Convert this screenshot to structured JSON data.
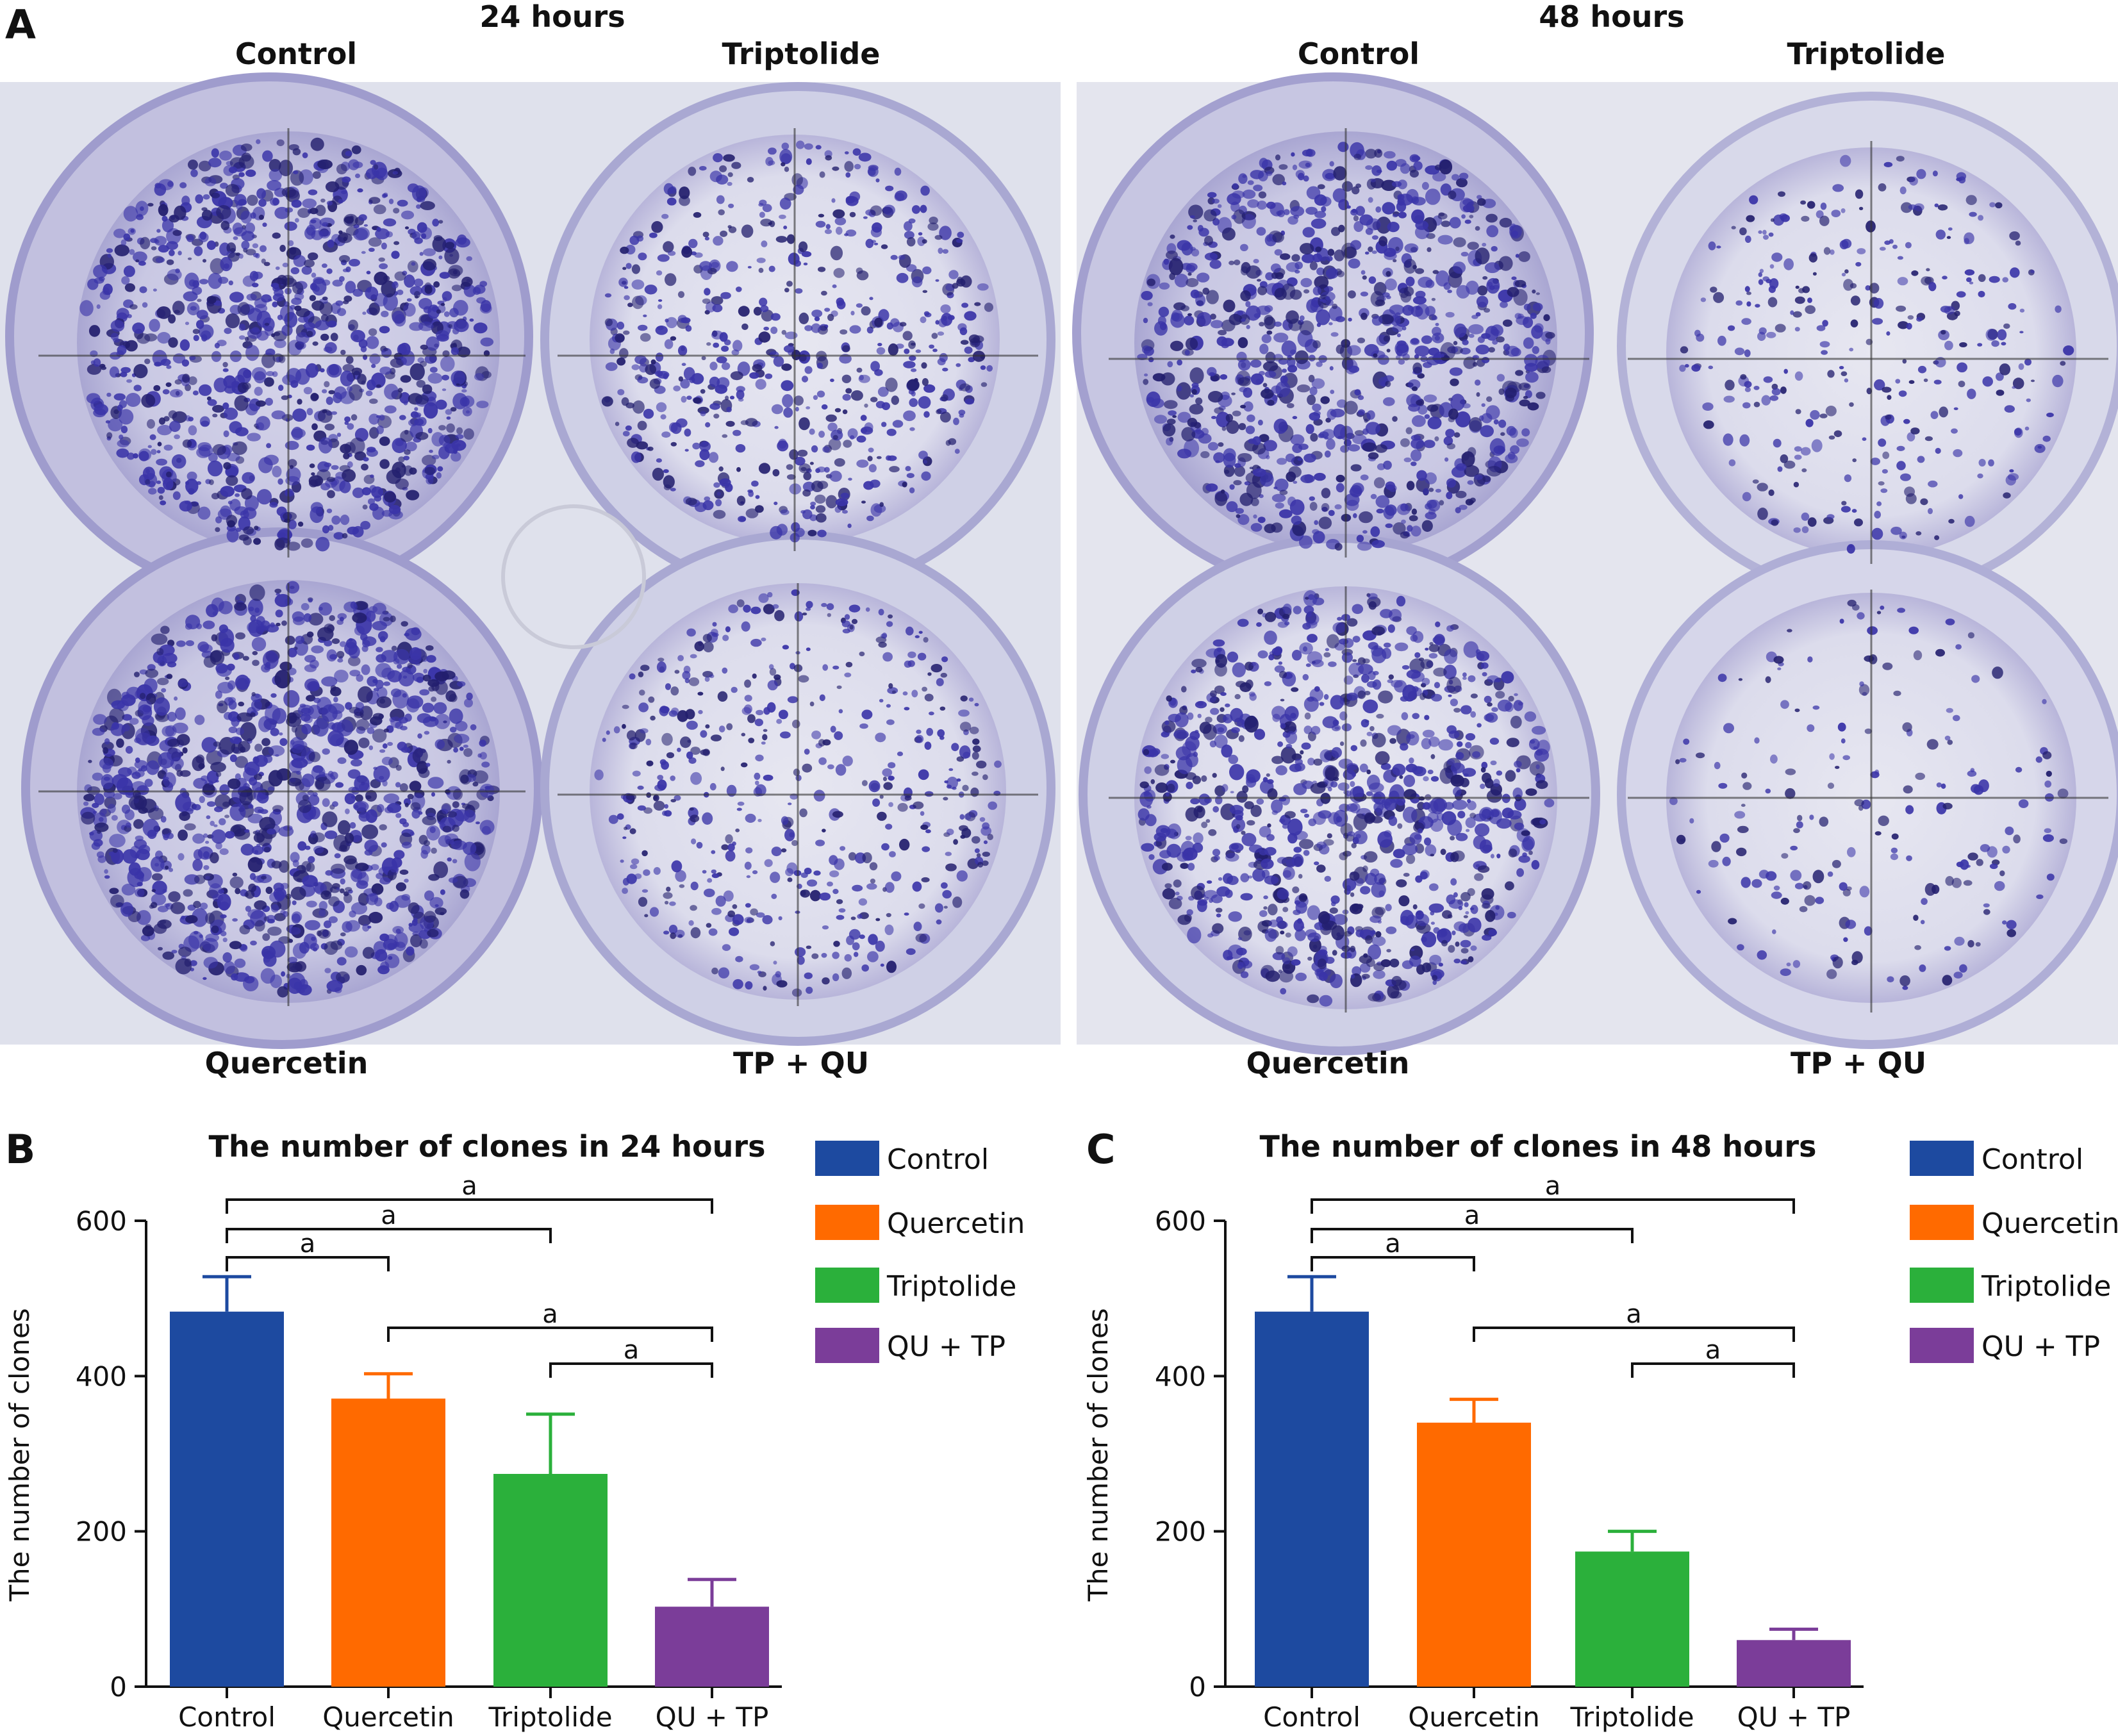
{
  "panel_a": {
    "letter": "A",
    "groups": [
      {
        "time": "24 hours",
        "top_left": "Control",
        "top_right": "Triptolide",
        "bottom_left": "Quercetin",
        "bottom_right": "TP + QU"
      },
      {
        "time": "48 hours",
        "top_left": "Control",
        "top_right": "Triptolide",
        "bottom_left": "Quercetin",
        "bottom_right": "TP + QU"
      }
    ],
    "colors": {
      "plate": "#dfe1ec",
      "dish_rim": "#b7b7d8",
      "stain": "#3a34a8",
      "stain_dark": "#231f6e"
    }
  },
  "legend": [
    {
      "name": "Control",
      "color": "#1d4aa0"
    },
    {
      "name": "Quercetin",
      "color": "#ff6a00"
    },
    {
      "name": "Triptolide",
      "color": "#2bb03b"
    },
    {
      "name": "QU + TP",
      "color": "#7b3d99"
    }
  ],
  "chart_data": [
    {
      "letter": "B",
      "type": "bar",
      "title": "The number of clones in 24 hours",
      "ylabel": "The number of clones",
      "categories": [
        "Control",
        "Quercetin",
        "Triptolide",
        "QU + TP"
      ],
      "values": [
        483,
        371,
        274,
        103
      ],
      "errors": [
        45,
        32,
        77,
        35
      ],
      "ylim": [
        0,
        600
      ],
      "yticks": [
        "0",
        "200",
        "400",
        "600"
      ],
      "sig_label": "a",
      "comparisons": [
        [
          0,
          3
        ],
        [
          0,
          2
        ],
        [
          0,
          1
        ],
        [
          1,
          3
        ],
        [
          2,
          3
        ]
      ],
      "legend_position": "top-right"
    },
    {
      "letter": "C",
      "type": "bar",
      "title": "The number of clones in 48 hours",
      "ylabel": "The number of clones",
      "categories": [
        "Control",
        "Quercetin",
        "Triptolide",
        "QU + TP"
      ],
      "values": [
        483,
        340,
        174,
        60
      ],
      "errors": [
        45,
        30,
        26,
        14
      ],
      "ylim": [
        0,
        600
      ],
      "yticks": [
        "0",
        "200",
        "400",
        "600"
      ],
      "sig_label": "a",
      "comparisons": [
        [
          0,
          3
        ],
        [
          0,
          2
        ],
        [
          0,
          1
        ],
        [
          1,
          3
        ],
        [
          2,
          3
        ]
      ],
      "legend_position": "top-right"
    }
  ]
}
